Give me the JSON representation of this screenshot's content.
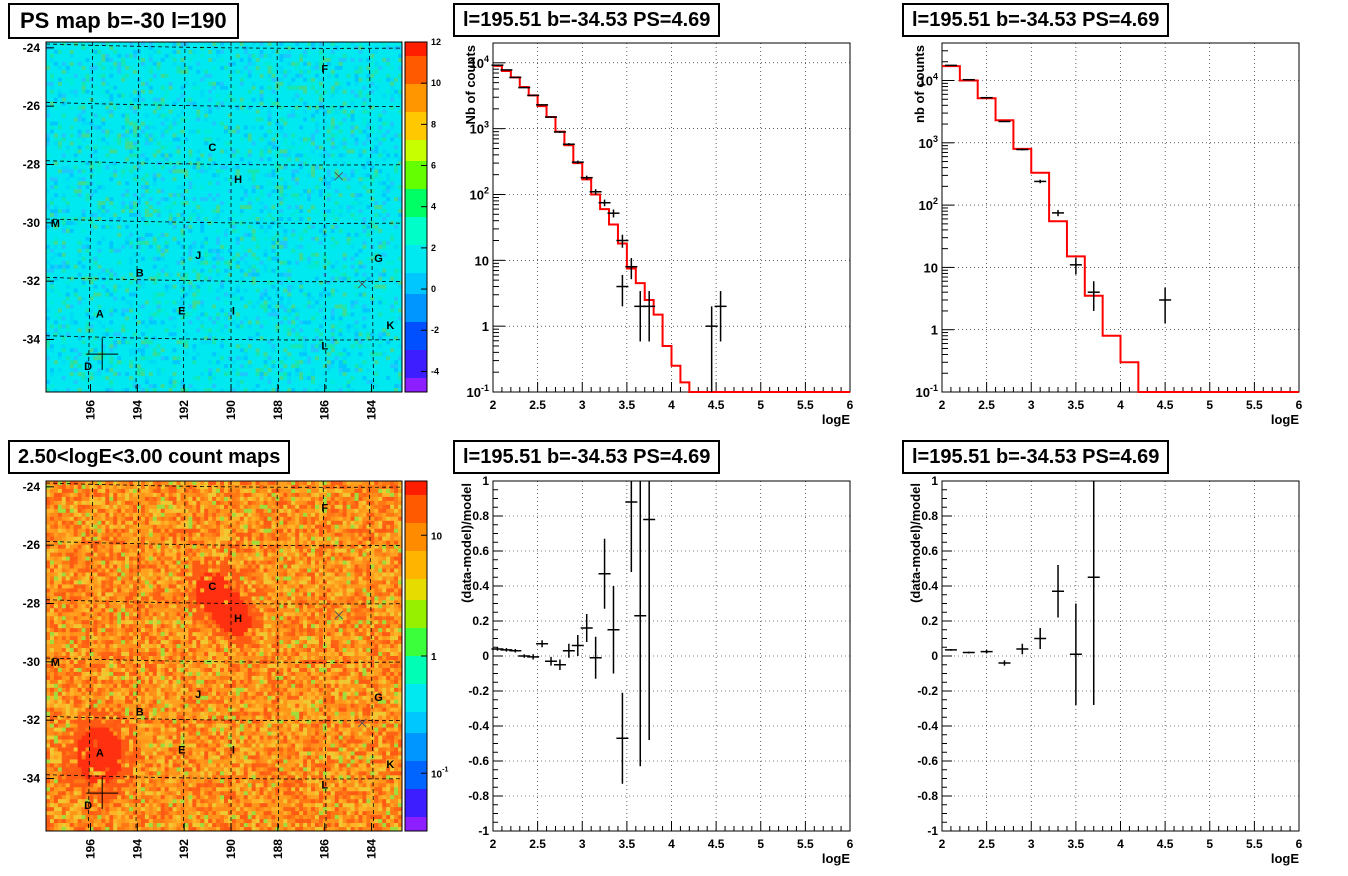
{
  "chart_data": [
    {
      "type": "heatmap",
      "title": "PS map b=-30 l=190",
      "xlabel": "",
      "ylabel": "",
      "x_ticks": [
        "196",
        "194",
        "192",
        "190",
        "188",
        "186",
        "184"
      ],
      "y_ticks": [
        "-24",
        "-26",
        "-28",
        "-30",
        "-32",
        "-34"
      ],
      "colorbar_ticks": [
        "12",
        "10",
        "8",
        "6",
        "4",
        "2",
        "0",
        "-2",
        "-4"
      ],
      "colorbar_range": [
        -5,
        12
      ],
      "colorbar_scale": "linear",
      "base_color": "#00e8f0",
      "grid": true,
      "source_labels": [
        {
          "label": "F",
          "l": 186.0,
          "b": -24.7
        },
        {
          "label": "C",
          "l": 190.8,
          "b": -27.4
        },
        {
          "label": "H",
          "l": 189.7,
          "b": -28.5
        },
        {
          "label": "M",
          "l": 197.5,
          "b": -30.0
        },
        {
          "label": "J",
          "l": 191.4,
          "b": -31.1
        },
        {
          "label": "G",
          "l": 183.7,
          "b": -31.2
        },
        {
          "label": "B",
          "l": 193.9,
          "b": -31.7
        },
        {
          "label": "A",
          "l": 195.6,
          "b": -33.1
        },
        {
          "label": "E",
          "l": 192.1,
          "b": -33.0
        },
        {
          "label": "I",
          "l": 189.9,
          "b": -33.0
        },
        {
          "label": "K",
          "l": 183.2,
          "b": -33.5
        },
        {
          "label": "L",
          "l": 186.0,
          "b": -34.2
        },
        {
          "label": "D",
          "l": 196.1,
          "b": -34.9
        }
      ],
      "markers": [
        {
          "type": "cross-large",
          "l": 195.5,
          "b": -34.5
        },
        {
          "type": "x",
          "l": 185.4,
          "b": -28.4
        },
        {
          "type": "x",
          "l": 184.4,
          "b": -32.1
        }
      ]
    },
    {
      "type": "line",
      "title": "l=195.51 b=-34.53 PS=4.69",
      "xlabel": "logE",
      "ylabel": "Nb of counts",
      "yscale": "log",
      "xlim": [
        2,
        6
      ],
      "ylim": [
        0.1,
        20000
      ],
      "x_ticks": [
        "2",
        "2.5",
        "3",
        "3.5",
        "4",
        "4.5",
        "5",
        "5.5",
        "6"
      ],
      "y_ticks": [
        "10^{-1}",
        "1",
        "10",
        "10^{2}",
        "10^{3}",
        "10^{4}"
      ],
      "grid": true,
      "model_step": {
        "color": "#ff0000",
        "edges": [
          2.0,
          2.1,
          2.2,
          2.3,
          2.4,
          2.5,
          2.6,
          2.7,
          2.8,
          2.9,
          3.0,
          3.1,
          3.2,
          3.3,
          3.4,
          3.5,
          3.6,
          3.7,
          3.8,
          3.9,
          4.0,
          4.1,
          4.2,
          6.0
        ],
        "values": [
          9000,
          7500,
          6000,
          4300,
          3200,
          2200,
          1500,
          900,
          560,
          300,
          170,
          100,
          60,
          35,
          18,
          7.5,
          4.5,
          2.5,
          1.5,
          0.5,
          0.25,
          0.14,
          0.1
        ]
      },
      "data_points": [
        {
          "x": 2.05,
          "y": 9200
        },
        {
          "x": 2.15,
          "y": 7800
        },
        {
          "x": 2.25,
          "y": 6000
        },
        {
          "x": 2.35,
          "y": 4200
        },
        {
          "x": 2.45,
          "y": 3200
        },
        {
          "x": 2.55,
          "y": 2300
        },
        {
          "x": 2.65,
          "y": 1500
        },
        {
          "x": 2.75,
          "y": 890
        },
        {
          "x": 2.85,
          "y": 580
        },
        {
          "x": 2.95,
          "y": 310
        },
        {
          "x": 3.05,
          "y": 180
        },
        {
          "x": 3.15,
          "y": 110
        },
        {
          "x": 3.25,
          "y": 75
        },
        {
          "x": 3.35,
          "y": 52
        },
        {
          "x": 3.45,
          "y": 20
        },
        {
          "x": 3.45,
          "y": 4
        },
        {
          "x": 3.55,
          "y": 8
        },
        {
          "x": 3.65,
          "y": 2
        },
        {
          "x": 3.75,
          "y": 2
        },
        {
          "x": 4.45,
          "y": 1
        },
        {
          "x": 4.55,
          "y": 2
        }
      ]
    },
    {
      "type": "line",
      "title": "l=195.51 b=-34.53 PS=4.69",
      "xlabel": "logE",
      "ylabel": "nb of counts",
      "yscale": "log",
      "xlim": [
        2,
        6
      ],
      "ylim": [
        0.1,
        40000
      ],
      "x_ticks": [
        "2",
        "2.5",
        "3",
        "3.5",
        "4",
        "4.5",
        "5",
        "5.5",
        "6"
      ],
      "y_ticks": [
        "10^{-1}",
        "1",
        "10",
        "10^{2}",
        "10^{3}",
        "10^{4}"
      ],
      "grid": true,
      "model_step": {
        "color": "#ff0000",
        "edges": [
          2.0,
          2.2,
          2.4,
          2.6,
          2.8,
          3.0,
          3.2,
          3.4,
          3.6,
          3.8,
          4.0,
          4.2,
          6.0
        ],
        "values": [
          17000,
          10000,
          5200,
          2300,
          800,
          330,
          55,
          15,
          3.5,
          0.8,
          0.3,
          0.1
        ]
      },
      "data_points": [
        {
          "x": 2.1,
          "y": 17500
        },
        {
          "x": 2.3,
          "y": 10300
        },
        {
          "x": 2.5,
          "y": 5300
        },
        {
          "x": 2.7,
          "y": 2200
        },
        {
          "x": 2.9,
          "y": 780
        },
        {
          "x": 3.1,
          "y": 240
        },
        {
          "x": 3.3,
          "y": 75
        },
        {
          "x": 3.5,
          "y": 11
        },
        {
          "x": 3.7,
          "y": 4
        },
        {
          "x": 4.5,
          "y": 3
        }
      ]
    },
    {
      "type": "heatmap",
      "title": "2.50<logE<3.00 count maps",
      "xlabel": "",
      "ylabel": "",
      "x_ticks": [
        "196",
        "194",
        "192",
        "190",
        "188",
        "186",
        "184"
      ],
      "y_ticks": [
        "-24",
        "-26",
        "-28",
        "-30",
        "-32",
        "-34"
      ],
      "colorbar_ticks": [
        "10",
        "1",
        "10^{-1}"
      ],
      "colorbar_scale": "log",
      "base_color": "#ff8c1a",
      "grid": true,
      "source_labels": [
        {
          "label": "F",
          "l": 186.0,
          "b": -24.7
        },
        {
          "label": "C",
          "l": 190.8,
          "b": -27.4
        },
        {
          "label": "H",
          "l": 189.7,
          "b": -28.5
        },
        {
          "label": "M",
          "l": 197.5,
          "b": -30.0
        },
        {
          "label": "J",
          "l": 191.4,
          "b": -31.1
        },
        {
          "label": "G",
          "l": 183.7,
          "b": -31.2
        },
        {
          "label": "B",
          "l": 193.9,
          "b": -31.7
        },
        {
          "label": "A",
          "l": 195.6,
          "b": -33.1
        },
        {
          "label": "E",
          "l": 192.1,
          "b": -33.0
        },
        {
          "label": "I",
          "l": 189.9,
          "b": -33.0
        },
        {
          "label": "K",
          "l": 183.2,
          "b": -33.5
        },
        {
          "label": "L",
          "l": 186.0,
          "b": -34.2
        },
        {
          "label": "D",
          "l": 196.1,
          "b": -34.9
        }
      ],
      "markers": [
        {
          "type": "cross-large",
          "l": 195.5,
          "b": -34.5
        },
        {
          "type": "x",
          "l": 185.4,
          "b": -28.4
        },
        {
          "type": "x",
          "l": 184.4,
          "b": -32.1
        }
      ]
    },
    {
      "type": "scatter",
      "title": "l=195.51 b=-34.53 PS=4.69",
      "xlabel": "logE",
      "ylabel": "(data-model)/model",
      "xlim": [
        2,
        6
      ],
      "ylim": [
        -1,
        1
      ],
      "x_ticks": [
        "2",
        "2.5",
        "3",
        "3.5",
        "4",
        "4.5",
        "5",
        "5.5",
        "6"
      ],
      "y_ticks": [
        "-1",
        "-0.8",
        "-0.6",
        "-0.4",
        "-0.2",
        "0",
        "0.2",
        "0.4",
        "0.6",
        "0.8",
        "1"
      ],
      "grid": true,
      "points": [
        {
          "x": 2.05,
          "y": 0.04,
          "err": 0.01
        },
        {
          "x": 2.15,
          "y": 0.035,
          "err": 0.01
        },
        {
          "x": 2.25,
          "y": 0.03,
          "err": 0.01
        },
        {
          "x": 2.35,
          "y": 0.0,
          "err": 0.01
        },
        {
          "x": 2.45,
          "y": -0.005,
          "err": 0.015
        },
        {
          "x": 2.55,
          "y": 0.07,
          "err": 0.02
        },
        {
          "x": 2.65,
          "y": -0.03,
          "err": 0.025
        },
        {
          "x": 2.75,
          "y": -0.05,
          "err": 0.03
        },
        {
          "x": 2.85,
          "y": 0.03,
          "err": 0.04
        },
        {
          "x": 2.95,
          "y": 0.06,
          "err": 0.06
        },
        {
          "x": 3.05,
          "y": 0.16,
          "err": 0.08
        },
        {
          "x": 3.15,
          "y": -0.01,
          "err": 0.12
        },
        {
          "x": 3.25,
          "y": 0.47,
          "err": 0.2
        },
        {
          "x": 3.35,
          "y": 0.15,
          "err": 0.25
        },
        {
          "x": 3.45,
          "y": -0.47,
          "err": 0.26
        },
        {
          "x": 3.55,
          "y": 0.88,
          "err": 0.4
        },
        {
          "x": 3.65,
          "y": 0.23,
          "err": 0.86
        },
        {
          "x": 3.75,
          "y": 0.78,
          "err": 1.26
        }
      ]
    },
    {
      "type": "scatter",
      "title": "l=195.51 b=-34.53 PS=4.69",
      "xlabel": "logE",
      "ylabel": "(data-model)/model",
      "xlim": [
        2,
        6
      ],
      "ylim": [
        -1,
        1
      ],
      "x_ticks": [
        "2",
        "2.5",
        "3",
        "3.5",
        "4",
        "4.5",
        "5",
        "5.5",
        "6"
      ],
      "y_ticks": [
        "-1",
        "-0.8",
        "-0.6",
        "-0.4",
        "-0.2",
        "0",
        "0.2",
        "0.4",
        "0.6",
        "0.8",
        "1"
      ],
      "grid": true,
      "points": [
        {
          "x": 2.1,
          "y": 0.035,
          "err": 0.005
        },
        {
          "x": 2.3,
          "y": 0.02,
          "err": 0.005
        },
        {
          "x": 2.5,
          "y": 0.025,
          "err": 0.01
        },
        {
          "x": 2.7,
          "y": -0.04,
          "err": 0.015
        },
        {
          "x": 2.9,
          "y": 0.04,
          "err": 0.03
        },
        {
          "x": 3.1,
          "y": 0.1,
          "err": 0.06
        },
        {
          "x": 3.3,
          "y": 0.37,
          "err": 0.15
        },
        {
          "x": 3.5,
          "y": 0.01,
          "err": 0.29
        },
        {
          "x": 3.7,
          "y": 0.45,
          "err": 0.73
        }
      ]
    }
  ]
}
